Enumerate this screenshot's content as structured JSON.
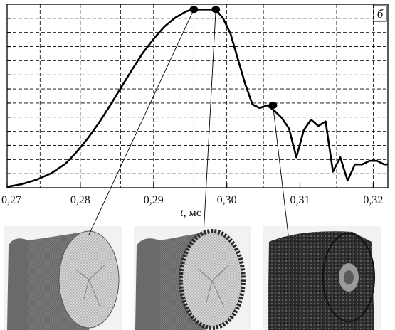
{
  "chart_data": {
    "type": "line",
    "panel_label": "б",
    "xlabel_var": "t",
    "xlabel_unit": ", мс",
    "ylabel": "",
    "xlim": [
      0.27,
      0.322
    ],
    "ylim": [
      0,
      1
    ],
    "grid": true,
    "x_ticks": [
      0.27,
      0.28,
      0.29,
      0.3,
      0.31,
      0.32
    ],
    "x_tick_labels": [
      "0,27",
      "0,28",
      "0,29",
      "0,30",
      "0,31",
      "0,32"
    ],
    "series": [
      {
        "x": [
          0.27,
          0.272,
          0.274,
          0.276,
          0.278,
          0.2795,
          0.281,
          0.2825,
          0.284,
          0.2855,
          0.287,
          0.2885,
          0.29,
          0.2915,
          0.293,
          0.2945,
          0.2955,
          0.2985,
          0.2995,
          0.3005,
          0.3015,
          0.3025,
          0.3035,
          0.3045,
          0.3055,
          0.3065,
          0.3075,
          0.3085,
          0.3095,
          0.3105,
          0.3115,
          0.3125,
          0.3135,
          0.3145,
          0.3155,
          0.3165,
          0.3175,
          0.3185,
          0.3195,
          0.3205,
          0.3215,
          0.322
        ],
        "y": [
          0.005,
          0.02,
          0.045,
          0.08,
          0.135,
          0.2,
          0.275,
          0.36,
          0.455,
          0.555,
          0.655,
          0.75,
          0.83,
          0.9,
          0.95,
          0.985,
          0.995,
          0.995,
          0.945,
          0.86,
          0.72,
          0.58,
          0.465,
          0.445,
          0.46,
          0.43,
          0.39,
          0.33,
          0.17,
          0.32,
          0.38,
          0.345,
          0.37,
          0.09,
          0.17,
          0.04,
          0.13,
          0.13,
          0.15,
          0.15,
          0.13,
          0.13
        ]
      }
    ],
    "markers": [
      {
        "x": 0.2955,
        "y": 0.995
      },
      {
        "x": 0.2985,
        "y": 0.995
      },
      {
        "x": 0.3063,
        "y": 0.46
      }
    ]
  }
}
